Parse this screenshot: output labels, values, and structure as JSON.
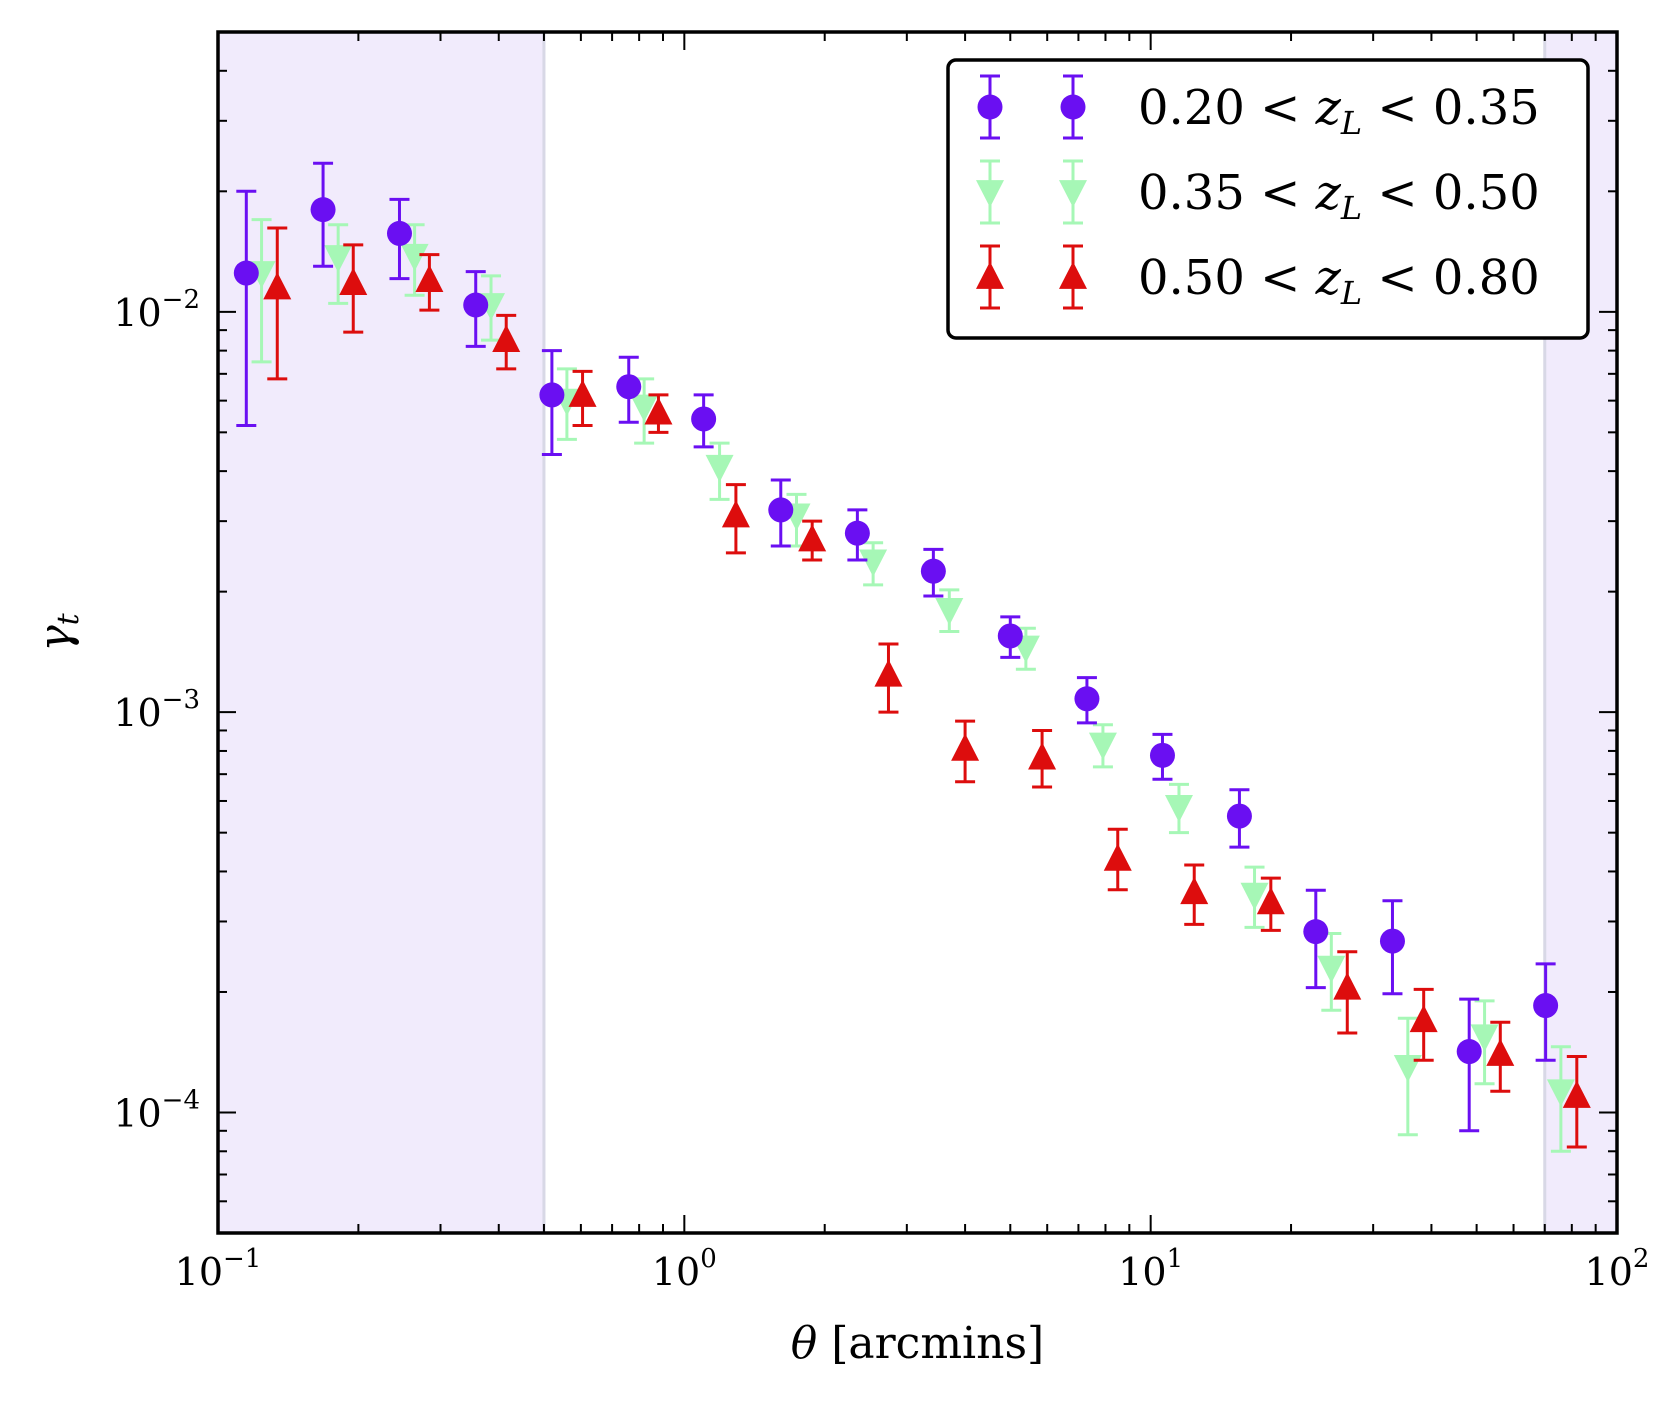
{
  "chart_data": {
    "type": "scatter",
    "title": "",
    "xlabel": "θ [arcmins]",
    "ylabel": "γt",
    "xscale": "log",
    "yscale": "log",
    "xlim": [
      0.1,
      100
    ],
    "ylim": [
      5e-05,
      0.05
    ],
    "grid": false,
    "legend_position": "top-right",
    "x_ticks": [
      {
        "value": 0.1,
        "base": "10",
        "exp": "−1"
      },
      {
        "value": 1,
        "base": "10",
        "exp": "0"
      },
      {
        "value": 10,
        "base": "10",
        "exp": "1"
      },
      {
        "value": 100,
        "base": "10",
        "exp": "2"
      }
    ],
    "y_ticks": [
      {
        "value": 0.0001,
        "base": "10",
        "exp": "−4"
      },
      {
        "value": 0.001,
        "base": "10",
        "exp": "−3"
      },
      {
        "value": 0.01,
        "base": "10",
        "exp": "−2"
      }
    ],
    "shaded_regions": [
      {
        "x": [
          0.1,
          0.5
        ],
        "color": "#f1ebfc"
      },
      {
        "x": [
          70,
          100
        ],
        "color": "#f1ebfc"
      }
    ],
    "series": [
      {
        "name": "0.20 < zL < 0.35",
        "marker": "circle",
        "color": "#6a0ff2",
        "points": [
          {
            "x": 0.115,
            "y": 0.0125,
            "lo": 0.0052,
            "hi": 0.02
          },
          {
            "x": 0.168,
            "y": 0.018,
            "lo": 0.013,
            "hi": 0.0235
          },
          {
            "x": 0.245,
            "y": 0.0157,
            "lo": 0.0121,
            "hi": 0.0191
          },
          {
            "x": 0.357,
            "y": 0.0104,
            "lo": 0.0082,
            "hi": 0.0126
          },
          {
            "x": 0.52,
            "y": 0.0062,
            "lo": 0.0044,
            "hi": 0.008
          },
          {
            "x": 0.76,
            "y": 0.0065,
            "lo": 0.0053,
            "hi": 0.0077
          },
          {
            "x": 1.1,
            "y": 0.0054,
            "lo": 0.0046,
            "hi": 0.0062
          },
          {
            "x": 1.61,
            "y": 0.0032,
            "lo": 0.0026,
            "hi": 0.0038
          },
          {
            "x": 2.35,
            "y": 0.0028,
            "lo": 0.0024,
            "hi": 0.0032
          },
          {
            "x": 3.42,
            "y": 0.00225,
            "lo": 0.00195,
            "hi": 0.00255
          },
          {
            "x": 5.0,
            "y": 0.00155,
            "lo": 0.00137,
            "hi": 0.00173
          },
          {
            "x": 7.3,
            "y": 0.00108,
            "lo": 0.00094,
            "hi": 0.00122
          },
          {
            "x": 10.6,
            "y": 0.00078,
            "lo": 0.00068,
            "hi": 0.00088
          },
          {
            "x": 15.5,
            "y": 0.00055,
            "lo": 0.00046,
            "hi": 0.00064
          },
          {
            "x": 22.6,
            "y": 0.000283,
            "lo": 0.000205,
            "hi": 0.000359
          },
          {
            "x": 33.0,
            "y": 0.000268,
            "lo": 0.000198,
            "hi": 0.000338
          },
          {
            "x": 48.2,
            "y": 0.000142,
            "lo": 9e-05,
            "hi": 0.000192
          },
          {
            "x": 70.3,
            "y": 0.000185,
            "lo": 0.000135,
            "hi": 0.000235
          }
        ]
      },
      {
        "name": "0.35 < zL < 0.50",
        "marker": "triangle-down",
        "color": "#a6f7b6",
        "points": [
          {
            "x": 0.124,
            "y": 0.0125,
            "lo": 0.0075,
            "hi": 0.017
          },
          {
            "x": 0.181,
            "y": 0.0137,
            "lo": 0.0105,
            "hi": 0.0165
          },
          {
            "x": 0.264,
            "y": 0.0138,
            "lo": 0.011,
            "hi": 0.0165
          },
          {
            "x": 0.385,
            "y": 0.0104,
            "lo": 0.0085,
            "hi": 0.0123
          },
          {
            "x": 0.56,
            "y": 0.006,
            "lo": 0.0048,
            "hi": 0.0072
          },
          {
            "x": 0.82,
            "y": 0.0058,
            "lo": 0.0047,
            "hi": 0.0068
          },
          {
            "x": 1.19,
            "y": 0.0041,
            "lo": 0.0034,
            "hi": 0.0047
          },
          {
            "x": 1.74,
            "y": 0.0031,
            "lo": 0.0026,
            "hi": 0.0035
          },
          {
            "x": 2.54,
            "y": 0.00238,
            "lo": 0.00208,
            "hi": 0.00265
          },
          {
            "x": 3.7,
            "y": 0.0018,
            "lo": 0.00159,
            "hi": 0.00202
          },
          {
            "x": 5.4,
            "y": 0.00145,
            "lo": 0.00128,
            "hi": 0.00162
          },
          {
            "x": 7.9,
            "y": 0.00083,
            "lo": 0.00073,
            "hi": 0.00093
          },
          {
            "x": 11.5,
            "y": 0.00058,
            "lo": 0.0005,
            "hi": 0.00066
          },
          {
            "x": 16.7,
            "y": 0.00035,
            "lo": 0.00029,
            "hi": 0.00041
          },
          {
            "x": 24.4,
            "y": 0.00023,
            "lo": 0.00018,
            "hi": 0.00028
          },
          {
            "x": 35.6,
            "y": 0.00013,
            "lo": 8.8e-05,
            "hi": 0.000172
          },
          {
            "x": 52.0,
            "y": 0.000155,
            "lo": 0.000118,
            "hi": 0.00019
          },
          {
            "x": 75.8,
            "y": 0.000113,
            "lo": 8e-05,
            "hi": 0.000146
          }
        ]
      },
      {
        "name": "0.50 < zL < 0.80",
        "marker": "triangle-up",
        "color": "#dd0d0d",
        "points": [
          {
            "x": 0.134,
            "y": 0.0115,
            "lo": 0.0068,
            "hi": 0.0162
          },
          {
            "x": 0.195,
            "y": 0.0118,
            "lo": 0.0089,
            "hi": 0.0147
          },
          {
            "x": 0.284,
            "y": 0.012,
            "lo": 0.0101,
            "hi": 0.0139
          },
          {
            "x": 0.415,
            "y": 0.0085,
            "lo": 0.0072,
            "hi": 0.0098
          },
          {
            "x": 0.605,
            "y": 0.0062,
            "lo": 0.0052,
            "hi": 0.0071
          },
          {
            "x": 0.88,
            "y": 0.0056,
            "lo": 0.005,
            "hi": 0.0062
          },
          {
            "x": 1.29,
            "y": 0.0031,
            "lo": 0.0025,
            "hi": 0.0037
          },
          {
            "x": 1.88,
            "y": 0.0027,
            "lo": 0.0024,
            "hi": 0.003
          },
          {
            "x": 2.74,
            "y": 0.00124,
            "lo": 0.001,
            "hi": 0.00148
          },
          {
            "x": 4.0,
            "y": 0.00081,
            "lo": 0.00067,
            "hi": 0.00095
          },
          {
            "x": 5.85,
            "y": 0.00077,
            "lo": 0.00065,
            "hi": 0.0009
          },
          {
            "x": 8.5,
            "y": 0.00043,
            "lo": 0.00036,
            "hi": 0.00051
          },
          {
            "x": 12.4,
            "y": 0.000355,
            "lo": 0.000295,
            "hi": 0.000415
          },
          {
            "x": 18.1,
            "y": 0.000335,
            "lo": 0.000285,
            "hi": 0.000385
          },
          {
            "x": 26.4,
            "y": 0.000205,
            "lo": 0.000158,
            "hi": 0.000252
          },
          {
            "x": 38.5,
            "y": 0.00017,
            "lo": 0.000135,
            "hi": 0.000203
          },
          {
            "x": 56.2,
            "y": 0.00014,
            "lo": 0.000113,
            "hi": 0.000168
          },
          {
            "x": 82.0,
            "y": 0.00011,
            "lo": 8.2e-05,
            "hi": 0.000138
          }
        ]
      }
    ],
    "legend": [
      {
        "series": 0,
        "pre": "0.20 < ",
        "var": "z",
        "sub": "L",
        "post": " < 0.35"
      },
      {
        "series": 1,
        "pre": "0.35 < ",
        "var": "z",
        "sub": "L",
        "post": " < 0.50"
      },
      {
        "series": 2,
        "pre": "0.50 < ",
        "var": "z",
        "sub": "L",
        "post": " < 0.80"
      }
    ],
    "xlabel_parts": {
      "var": "θ",
      "rest": " [arcmins]"
    },
    "ylabel_parts": {
      "var": "γ",
      "sub": "t"
    }
  }
}
